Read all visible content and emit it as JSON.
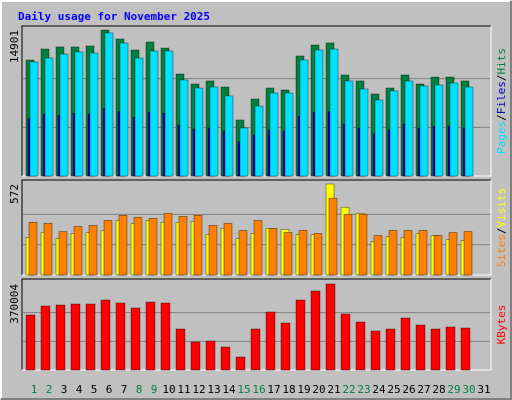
{
  "chart_data": [
    {
      "type": "bar",
      "title": "Daily usage for November 2025",
      "series": [
        {
          "name": "Hits",
          "color": "#008040",
          "values": [
            11840,
            12960,
            13170,
            13170,
            13270,
            14901,
            13980,
            12860,
            13680,
            13060,
            10410,
            9390,
            9700,
            9080,
            5720,
            7860,
            8980,
            8780,
            12250,
            13370,
            13580,
            10310,
            9700,
            8370,
            8980,
            10310,
            9390,
            10100,
            10100,
            9700,
            null
          ]
        },
        {
          "name": "Files",
          "color": "#0000C0",
          "values": [
            5900,
            6300,
            6200,
            6400,
            6300,
            6900,
            6600,
            6000,
            6500,
            6400,
            5200,
            4800,
            4900,
            4600,
            3500,
            4200,
            4700,
            4600,
            6100,
            6500,
            6600,
            5300,
            4900,
            4300,
            4700,
            5300,
            4900,
            5100,
            5100,
            4900,
            null
          ]
        },
        {
          "name": "Pages",
          "color": "#00E0FF",
          "values": [
            11640,
            12040,
            12450,
            12660,
            12550,
            14600,
            13570,
            12040,
            12760,
            12760,
            9800,
            8980,
            9080,
            8170,
            4900,
            7140,
            8470,
            8470,
            11840,
            12860,
            12960,
            9700,
            8880,
            7760,
            8680,
            9700,
            9190,
            9290,
            9490,
            9080,
            null
          ]
        }
      ],
      "ylim": [
        0,
        14901
      ],
      "yticks": [
        14901
      ],
      "grid": [
        4967,
        9934
      ],
      "legend_separator": "/"
    },
    {
      "type": "bar",
      "series": [
        {
          "name": "Visits",
          "color": "#FFFF00",
          "values": [
            235,
            267,
            229,
            261,
            267,
            280,
            343,
            324,
            343,
            331,
            331,
            337,
            254,
            293,
            229,
            261,
            293,
            286,
            254,
            254,
            572,
            426,
            388,
            210,
            242,
            235,
            261,
            248,
            223,
            216,
            null
          ]
        },
        {
          "name": "Sites",
          "color": "#FF8000",
          "values": [
            331,
            324,
            273,
            305,
            312,
            343,
            375,
            363,
            356,
            388,
            369,
            375,
            312,
            324,
            280,
            343,
            293,
            267,
            280,
            261,
            483,
            382,
            382,
            248,
            280,
            280,
            280,
            248,
            267,
            273,
            null
          ]
        }
      ],
      "ylim": [
        0,
        572
      ],
      "yticks": [
        572
      ],
      "grid": [
        191,
        381
      ],
      "legend_separator": "/"
    },
    {
      "type": "bar",
      "series": [
        {
          "name": "KBytes",
          "color": "#FF0000",
          "values": [
            236600,
            275300,
            279600,
            283900,
            283900,
            301100,
            288200,
            266700,
            292500,
            288200,
            176400,
            120500,
            124800,
            98900,
            55900,
            176400,
            249500,
            202200,
            301100,
            339900,
            370004,
            240900,
            206500,
            167800,
            176400,
            223700,
            193600,
            176400,
            185000,
            180700,
            null
          ]
        }
      ],
      "ylim": [
        0,
        370004
      ],
      "yticks": [
        370004
      ],
      "grid": [
        123335,
        246669
      ],
      "categories": [
        "1",
        "2",
        "3",
        "4",
        "5",
        "6",
        "7",
        "8",
        "9",
        "10",
        "11",
        "12",
        "13",
        "14",
        "15",
        "16",
        "17",
        "18",
        "19",
        "20",
        "21",
        "22",
        "23",
        "24",
        "25",
        "26",
        "27",
        "28",
        "29",
        "30",
        "31"
      ],
      "category_colors": [
        "#008040",
        "#008040",
        "#000000",
        "#000000",
        "#000000",
        "#000000",
        "#000000",
        "#008040",
        "#008040",
        "#000000",
        "#000000",
        "#000000",
        "#000000",
        "#000000",
        "#008040",
        "#008040",
        "#000000",
        "#000000",
        "#000000",
        "#000000",
        "#000000",
        "#008040",
        "#008040",
        "#000000",
        "#000000",
        "#000000",
        "#000000",
        "#000000",
        "#008040",
        "#008040",
        "#000000"
      ]
    }
  ]
}
